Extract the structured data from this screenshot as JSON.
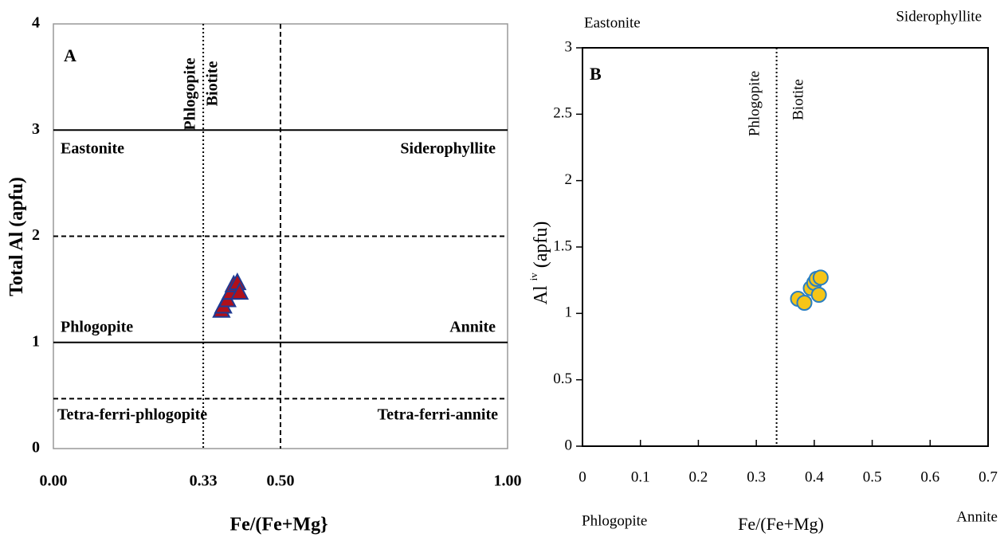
{
  "chart_data": [
    {
      "type": "scatter",
      "panel_label": "A",
      "xlabel": "Fe/(Fe+Mg}",
      "ylabel": "Total Al (apfu)",
      "xlim": [
        0,
        1
      ],
      "ylim": [
        0,
        4
      ],
      "xticks": [
        {
          "value": 0,
          "label": "0.00"
        },
        {
          "value": 0.33,
          "label": "0.33"
        },
        {
          "value": 0.5,
          "label": "0.50"
        },
        {
          "value": 1,
          "label": "1.00"
        }
      ],
      "yticks": [
        0,
        1,
        2,
        3,
        4
      ],
      "hlines": [
        {
          "value": 3,
          "style": "solid"
        },
        {
          "value": 2,
          "style": "dashed"
        },
        {
          "value": 1,
          "style": "solid"
        },
        {
          "value": 0.47,
          "style": "dashed"
        }
      ],
      "vlines": [
        {
          "value": 0.33,
          "style": "dotted"
        },
        {
          "value": 0.5,
          "style": "dashed"
        }
      ],
      "annotations": [
        "Eastonite",
        "Siderophyllite",
        "Phlogopite",
        "Annite",
        "Tetra-ferri-phlogopite",
        "Tetra-ferri-annite",
        "Phlogopite",
        "Biotite"
      ],
      "series": [
        {
          "marker": "triangle",
          "color": "#b0101a",
          "edgecolor": "#1f3a93",
          "x": [
            0.37,
            0.374,
            0.383,
            0.39,
            0.397,
            0.405,
            0.41
          ],
          "values": [
            1.3,
            1.34,
            1.4,
            1.47,
            1.54,
            1.56,
            1.47
          ]
        }
      ]
    },
    {
      "type": "scatter",
      "panel_label": "B",
      "xlabel": "Fe/(Fe+Mg)",
      "ylabel": "Al",
      "ylabel_superscript": "iv",
      "ylabel_unit": "(apfu)",
      "xlim": [
        0,
        0.7
      ],
      "ylim": [
        0,
        3
      ],
      "xticks": [
        0,
        0.1,
        0.2,
        0.3,
        0.4,
        0.5,
        0.6,
        0.7
      ],
      "yticks": [
        0,
        0.5,
        1,
        1.5,
        2,
        2.5,
        3
      ],
      "hlines": [],
      "vlines": [
        {
          "value": 0.335,
          "style": "dotted"
        }
      ],
      "annotations": [
        "Eastonite",
        "Siderophyllite",
        "Phlogopite",
        "Annite",
        "Phlogopite",
        "Biotite"
      ],
      "series": [
        {
          "marker": "circle",
          "color": "#f5c518",
          "edgecolor": "#2a7fc1",
          "x": [
            0.372,
            0.383,
            0.394,
            0.4,
            0.404,
            0.408,
            0.411
          ],
          "values": [
            1.11,
            1.08,
            1.19,
            1.23,
            1.26,
            1.14,
            1.27
          ]
        }
      ]
    }
  ]
}
